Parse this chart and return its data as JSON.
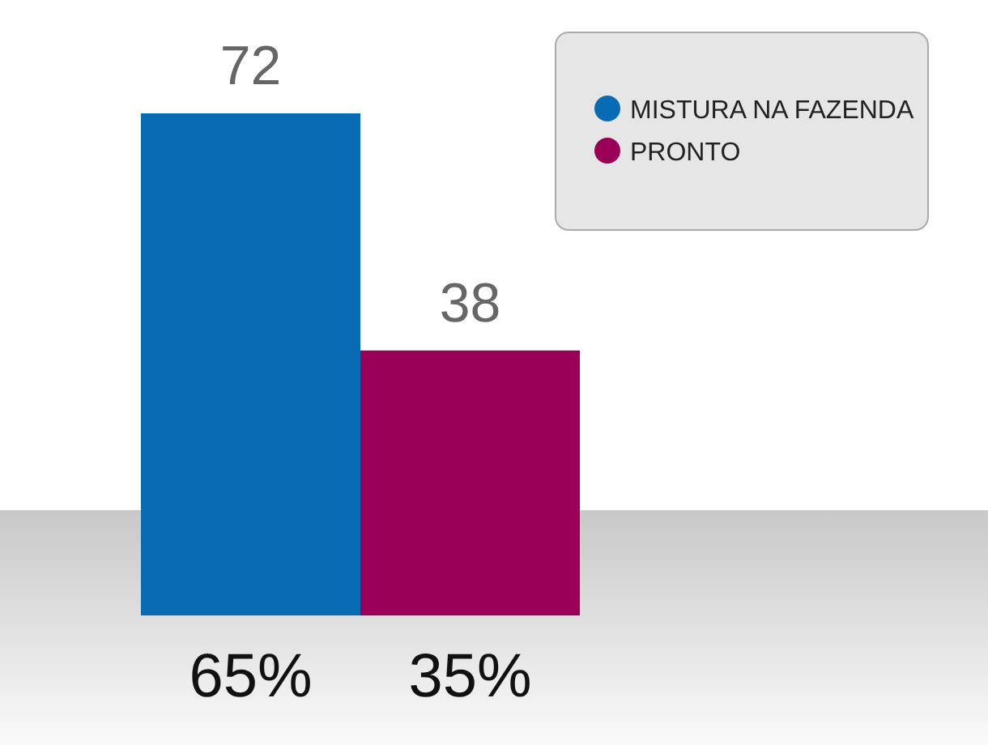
{
  "chart_data": {
    "type": "bar",
    "categories": [
      "65%",
      "35%"
    ],
    "series": [
      {
        "name": "MISTURA NA FAZENDA",
        "color": "#0a6bb5",
        "values": [
          72,
          null
        ]
      },
      {
        "name": "PRONTO",
        "color": "#9a0058",
        "values": [
          null,
          38
        ]
      }
    ],
    "data_labels": true,
    "legend": "top right"
  }
}
